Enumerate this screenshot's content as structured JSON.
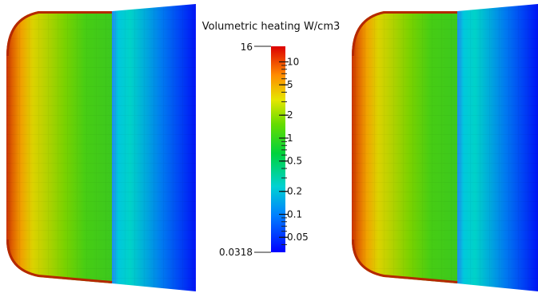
{
  "colorbar": {
    "title": "Volumetric heating W/cm3",
    "max_label": "16",
    "min_label": "0.0318",
    "range": [
      0.0318,
      16
    ],
    "scale": "log",
    "colormap": [
      "#0000ff",
      "#00c8ff",
      "#00dc50",
      "#e6e600",
      "#ff8c00",
      "#dc0000"
    ],
    "tick_labels": [
      {
        "value": 10,
        "text": "10"
      },
      {
        "value": 5,
        "text": "5"
      },
      {
        "value": 2,
        "text": "2"
      },
      {
        "value": 1,
        "text": "1"
      },
      {
        "value": 0.5,
        "text": "0.5"
      },
      {
        "value": 0.2,
        "text": "0.2"
      },
      {
        "value": 0.1,
        "text": "0.1"
      },
      {
        "value": 0.05,
        "text": "0.05"
      }
    ]
  }
}
